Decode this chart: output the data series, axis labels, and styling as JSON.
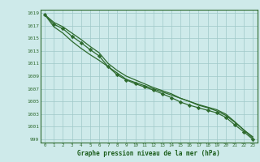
{
  "title": "Graphe pression niveau de la mer (hPa)",
  "x": [
    0,
    1,
    2,
    3,
    4,
    5,
    6,
    7,
    8,
    9,
    10,
    11,
    12,
    13,
    14,
    15,
    16,
    17,
    18,
    19,
    20,
    21,
    22,
    23
  ],
  "line_main": [
    1018.7,
    1017.2,
    1016.5,
    1015.3,
    1014.3,
    1013.2,
    1012.2,
    1010.5,
    1009.2,
    1008.4,
    1007.8,
    1007.3,
    1006.8,
    1006.2,
    1005.6,
    1004.9,
    1004.4,
    1004.0,
    1003.6,
    1003.2,
    1002.5,
    1001.3,
    1000.2,
    999.0
  ],
  "line_upper": [
    1018.7,
    1016.8,
    1015.8,
    1014.5,
    1013.4,
    1012.4,
    1011.5,
    1010.5,
    1009.5,
    1008.5,
    1008.0,
    1007.5,
    1007.0,
    1006.5,
    1006.0,
    1005.5,
    1005.0,
    1004.5,
    1004.1,
    1003.7,
    1003.0,
    1001.8,
    1000.5,
    999.4
  ],
  "line_lower": [
    1018.7,
    1017.5,
    1016.8,
    1015.8,
    1014.8,
    1013.7,
    1012.7,
    1011.0,
    1009.9,
    1009.0,
    1008.4,
    1007.8,
    1007.2,
    1006.7,
    1006.2,
    1005.5,
    1005.0,
    1004.4,
    1004.0,
    1003.5,
    1002.8,
    1001.7,
    1000.5,
    999.2
  ],
  "xlim": [
    -0.5,
    23.5
  ],
  "ylim": [
    998.5,
    1019.5
  ],
  "yticks": [
    999,
    1001,
    1003,
    1005,
    1007,
    1009,
    1011,
    1013,
    1015,
    1017,
    1019
  ],
  "xticks": [
    0,
    1,
    2,
    3,
    4,
    5,
    6,
    7,
    8,
    9,
    10,
    11,
    12,
    13,
    14,
    15,
    16,
    17,
    18,
    19,
    20,
    21,
    22,
    23
  ],
  "line_color": "#2d6a2d",
  "bg_color": "#ceeaea",
  "grid_color": "#a0c8c8",
  "text_color": "#2d6a2d",
  "title_color": "#1a5c1a"
}
